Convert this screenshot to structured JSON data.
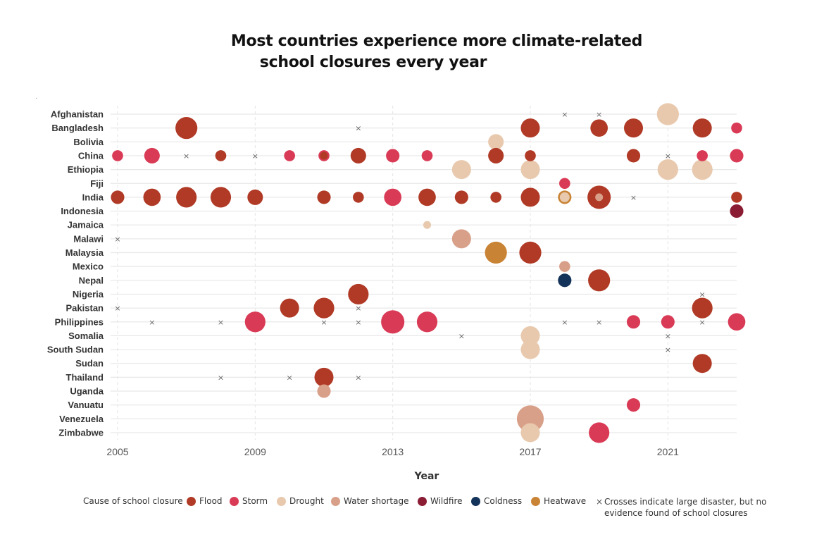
{
  "chart_data": {
    "type": "scatter",
    "title_line1": "Most countries experience more climate-related",
    "title_line2": "school closures every year",
    "xlabel": "Year",
    "xlim": [
      2005,
      2023
    ],
    "xticks": [
      "2005",
      "2009",
      "2013",
      "2017",
      "2021"
    ],
    "countries": [
      "Afghanistan",
      "Bangladesh",
      "Bolivia",
      "China",
      "Ethiopia",
      "Fiji",
      "India",
      "Indonesia",
      "Jamaica",
      "Malawi",
      "Malaysia",
      "Mexico",
      "Nepal",
      "Nigeria",
      "Pakistan",
      "Philippines",
      "Somalia",
      "South Sudan",
      "Sudan",
      "Thailand",
      "Uganda",
      "Vanuatu",
      "Venezuela",
      "Zimbabwe"
    ],
    "colors": {
      "Flood": "#b03a26",
      "Storm": "#d93a55",
      "Drought": "#e8c9ad",
      "Water shortage": "#d9a089",
      "Wildfire": "#8a1c34",
      "Coldness": "#14335a",
      "Heatwave": "#c98335"
    },
    "legend": {
      "title": "Cause of school closure",
      "items": [
        "Flood",
        "Storm",
        "Drought",
        "Water shortage",
        "Wildfire",
        "Coldness",
        "Heatwave"
      ],
      "cross_note": "Crosses indicate large disaster, but no evidence found of school closures"
    },
    "bubbles": [
      {
        "country": "Afghanistan",
        "year": 2021,
        "cause": "Drought",
        "size": 4
      },
      {
        "country": "Bangladesh",
        "year": 2007,
        "cause": "Flood",
        "size": 4
      },
      {
        "country": "Bangladesh",
        "year": 2017,
        "cause": "Flood",
        "size": 3
      },
      {
        "country": "Bangladesh",
        "year": 2019,
        "cause": "Flood",
        "size": 2.5
      },
      {
        "country": "Bangladesh",
        "year": 2020,
        "cause": "Flood",
        "size": 3
      },
      {
        "country": "Bangladesh",
        "year": 2022,
        "cause": "Flood",
        "size": 3
      },
      {
        "country": "Bangladesh",
        "year": 2023,
        "cause": "Storm",
        "size": 1
      },
      {
        "country": "Bolivia",
        "year": 2016,
        "cause": "Drought",
        "size": 2
      },
      {
        "country": "China",
        "year": 2005,
        "cause": "Storm",
        "size": 1
      },
      {
        "country": "China",
        "year": 2006,
        "cause": "Storm",
        "size": 2
      },
      {
        "country": "China",
        "year": 2008,
        "cause": "Flood",
        "size": 1
      },
      {
        "country": "China",
        "year": 2010,
        "cause": "Storm",
        "size": 1
      },
      {
        "country": "China",
        "year": 2011,
        "cause": "Storm",
        "size": 1
      },
      {
        "country": "China",
        "year": 2011,
        "cause": "Flood",
        "size": 0.5
      },
      {
        "country": "China",
        "year": 2012,
        "cause": "Flood",
        "size": 2
      },
      {
        "country": "China",
        "year": 2013,
        "cause": "Storm",
        "size": 1.5
      },
      {
        "country": "China",
        "year": 2014,
        "cause": "Storm",
        "size": 1
      },
      {
        "country": "China",
        "year": 2016,
        "cause": "Flood",
        "size": 2
      },
      {
        "country": "China",
        "year": 2017,
        "cause": "Flood",
        "size": 1
      },
      {
        "country": "China",
        "year": 2020,
        "cause": "Flood",
        "size": 1.5
      },
      {
        "country": "China",
        "year": 2022,
        "cause": "Storm",
        "size": 1
      },
      {
        "country": "China",
        "year": 2023,
        "cause": "Storm",
        "size": 1.5
      },
      {
        "country": "Ethiopia",
        "year": 2015,
        "cause": "Drought",
        "size": 3
      },
      {
        "country": "Ethiopia",
        "year": 2017,
        "cause": "Drought",
        "size": 3
      },
      {
        "country": "Ethiopia",
        "year": 2021,
        "cause": "Drought",
        "size": 3.5
      },
      {
        "country": "Ethiopia",
        "year": 2022,
        "cause": "Drought",
        "size": 3.5
      },
      {
        "country": "Fiji",
        "year": 2018,
        "cause": "Storm",
        "size": 1
      },
      {
        "country": "India",
        "year": 2005,
        "cause": "Flood",
        "size": 1.5
      },
      {
        "country": "India",
        "year": 2006,
        "cause": "Flood",
        "size": 2.5
      },
      {
        "country": "India",
        "year": 2007,
        "cause": "Flood",
        "size": 3.5
      },
      {
        "country": "India",
        "year": 2008,
        "cause": "Flood",
        "size": 3.5
      },
      {
        "country": "India",
        "year": 2009,
        "cause": "Flood",
        "size": 2
      },
      {
        "country": "India",
        "year": 2011,
        "cause": "Flood",
        "size": 1.5
      },
      {
        "country": "India",
        "year": 2012,
        "cause": "Flood",
        "size": 1
      },
      {
        "country": "India",
        "year": 2013,
        "cause": "Storm",
        "size": 2.5
      },
      {
        "country": "India",
        "year": 2014,
        "cause": "Flood",
        "size": 2.5
      },
      {
        "country": "India",
        "year": 2015,
        "cause": "Flood",
        "size": 1.5
      },
      {
        "country": "India",
        "year": 2016,
        "cause": "Flood",
        "size": 1
      },
      {
        "country": "India",
        "year": 2017,
        "cause": "Flood",
        "size": 3
      },
      {
        "country": "India",
        "year": 2018,
        "cause": "Heatwave",
        "size": 1.5
      },
      {
        "country": "India",
        "year": 2018,
        "cause": "Drought",
        "size": 0.8
      },
      {
        "country": "India",
        "year": 2019,
        "cause": "Flood",
        "size": 4.5
      },
      {
        "country": "India",
        "year": 2019,
        "cause": "Water shortage",
        "size": 0.5
      },
      {
        "country": "India",
        "year": 2023,
        "cause": "Flood",
        "size": 1
      },
      {
        "country": "Indonesia",
        "year": 2023,
        "cause": "Wildfire",
        "size": 1.5
      },
      {
        "country": "Jamaica",
        "year": 2014,
        "cause": "Drought",
        "size": 0.5
      },
      {
        "country": "Malawi",
        "year": 2015,
        "cause": "Water shortage",
        "size": 3
      },
      {
        "country": "Malaysia",
        "year": 2016,
        "cause": "Heatwave",
        "size": 4
      },
      {
        "country": "Malaysia",
        "year": 2017,
        "cause": "Flood",
        "size": 4
      },
      {
        "country": "Mexico",
        "year": 2018,
        "cause": "Water shortage",
        "size": 1
      },
      {
        "country": "Nepal",
        "year": 2018,
        "cause": "Coldness",
        "size": 1.5
      },
      {
        "country": "Nepal",
        "year": 2019,
        "cause": "Flood",
        "size": 4
      },
      {
        "country": "Nigeria",
        "year": 2012,
        "cause": "Flood",
        "size": 3.5
      },
      {
        "country": "Pakistan",
        "year": 2010,
        "cause": "Flood",
        "size": 3
      },
      {
        "country": "Pakistan",
        "year": 2011,
        "cause": "Flood",
        "size": 3.5
      },
      {
        "country": "Pakistan",
        "year": 2022,
        "cause": "Flood",
        "size": 3.5
      },
      {
        "country": "Philippines",
        "year": 2009,
        "cause": "Storm",
        "size": 3.5
      },
      {
        "country": "Philippines",
        "year": 2013,
        "cause": "Storm",
        "size": 4.5
      },
      {
        "country": "Philippines",
        "year": 2014,
        "cause": "Storm",
        "size": 3.5
      },
      {
        "country": "Philippines",
        "year": 2020,
        "cause": "Storm",
        "size": 1.5
      },
      {
        "country": "Philippines",
        "year": 2021,
        "cause": "Storm",
        "size": 1.5
      },
      {
        "country": "Philippines",
        "year": 2023,
        "cause": "Storm",
        "size": 2.5
      },
      {
        "country": "Somalia",
        "year": 2017,
        "cause": "Drought",
        "size": 3
      },
      {
        "country": "South Sudan",
        "year": 2017,
        "cause": "Drought",
        "size": 3
      },
      {
        "country": "Sudan",
        "year": 2022,
        "cause": "Flood",
        "size": 3
      },
      {
        "country": "Thailand",
        "year": 2011,
        "cause": "Flood",
        "size": 3
      },
      {
        "country": "Uganda",
        "year": 2011,
        "cause": "Water shortage",
        "size": 1.5
      },
      {
        "country": "Vanuatu",
        "year": 2020,
        "cause": "Storm",
        "size": 1.5
      },
      {
        "country": "Venezuela",
        "year": 2017,
        "cause": "Water shortage",
        "size": 6
      },
      {
        "country": "Zimbabwe",
        "year": 2017,
        "cause": "Drought",
        "size": 3
      },
      {
        "country": "Zimbabwe",
        "year": 2019,
        "cause": "Storm",
        "size": 3.5
      }
    ],
    "crosses": [
      {
        "country": "Afghanistan",
        "year": 2018
      },
      {
        "country": "Afghanistan",
        "year": 2019
      },
      {
        "country": "Bangladesh",
        "year": 2012
      },
      {
        "country": "China",
        "year": 2007
      },
      {
        "country": "China",
        "year": 2009
      },
      {
        "country": "China",
        "year": 2021
      },
      {
        "country": "India",
        "year": 2020
      },
      {
        "country": "Malawi",
        "year": 2005
      },
      {
        "country": "Nigeria",
        "year": 2022
      },
      {
        "country": "Pakistan",
        "year": 2005
      },
      {
        "country": "Pakistan",
        "year": 2012
      },
      {
        "country": "Philippines",
        "year": 2006
      },
      {
        "country": "Philippines",
        "year": 2008
      },
      {
        "country": "Philippines",
        "year": 2011
      },
      {
        "country": "Philippines",
        "year": 2012
      },
      {
        "country": "Philippines",
        "year": 2018
      },
      {
        "country": "Philippines",
        "year": 2019
      },
      {
        "country": "Philippines",
        "year": 2022
      },
      {
        "country": "Somalia",
        "year": 2015
      },
      {
        "country": "Somalia",
        "year": 2021
      },
      {
        "country": "South Sudan",
        "year": 2021
      },
      {
        "country": "Thailand",
        "year": 2008
      },
      {
        "country": "Thailand",
        "year": 2010
      },
      {
        "country": "Thailand",
        "year": 2012
      }
    ]
  }
}
